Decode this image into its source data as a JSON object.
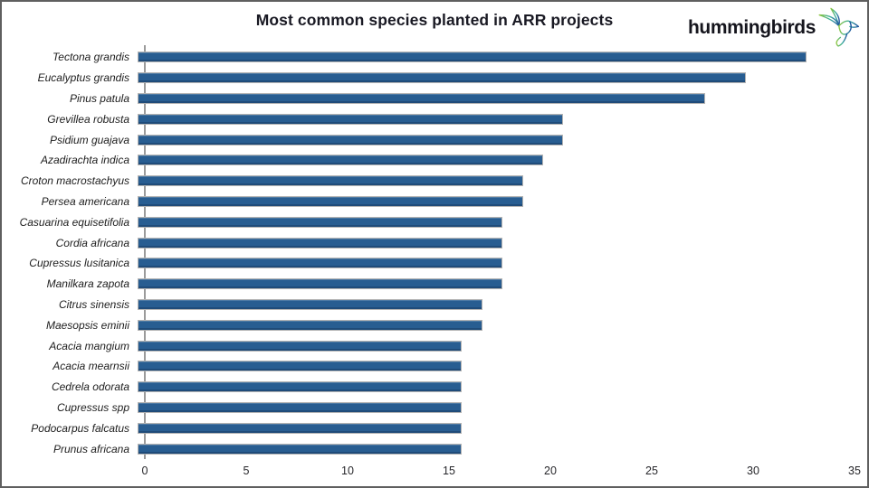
{
  "header": {
    "brand": "hummingbirds"
  },
  "chart_data": {
    "type": "bar",
    "orientation": "horizontal",
    "title": "Most common species planted in ARR projects",
    "categories": [
      "Tectona grandis",
      "Eucalyptus grandis",
      "Pinus patula",
      "Grevillea robusta",
      "Psidium guajava",
      "Azadirachta indica",
      "Croton macrostachyus",
      "Persea americana",
      "Casuarina equisetifolia",
      "Cordia africana",
      "Cupressus lusitanica",
      "Manilkara zapota",
      "Citrus sinensis",
      "Maesopsis eminii",
      "Acacia mangium",
      "Acacia mearnsii",
      "Cedrela odorata",
      "Cupressus spp",
      "Podocarpus falcatus",
      "Prunus africana"
    ],
    "values": [
      33,
      30,
      28,
      21,
      21,
      20,
      19,
      19,
      18,
      18,
      18,
      18,
      17,
      17,
      16,
      16,
      16,
      16,
      16,
      16
    ],
    "xlabel": "",
    "ylabel": "",
    "xlim": [
      0,
      35
    ],
    "xticks": [
      0,
      5,
      10,
      15,
      20,
      25,
      30,
      35
    ],
    "grid": false,
    "legend": "none"
  },
  "colors": {
    "bar": "#285d91",
    "axis_line": "#9b9b9b",
    "title_text": "#191923",
    "brand_text": "#15151d",
    "brand_gradient_green": "#8dc63f",
    "brand_gradient_teal": "#3bb0a0",
    "brand_gradient_blue": "#1b4f9c"
  }
}
